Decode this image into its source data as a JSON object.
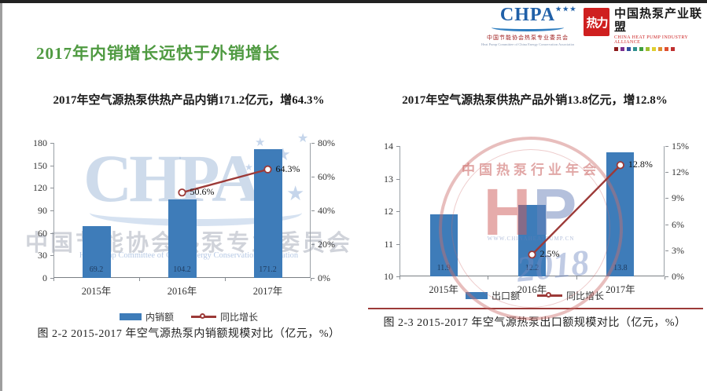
{
  "page": {
    "title": "2017年内销增长远快于外销增长",
    "title_color": "#4f9a41"
  },
  "header": {
    "chpa_logo": {
      "acronym": "CHPA",
      "stars": "★★★",
      "cn": "中国节能协会热泵专业委员会",
      "en": "Heat Pump Committee of China Energy Conservation Association"
    },
    "alliance_logo": {
      "mark": "热力",
      "cn": "中国热泵产业联盟",
      "en": "CHINA HEAT PUMP INDUSTRY ALLIANCE"
    }
  },
  "panels": {
    "left": {
      "subtitle": "2017年空气源热泵供热产品内销171.2亿元，增64.3%"
    },
    "right": {
      "subtitle": "2017年空气源热泵供热产品外销13.8亿元，增12.8%"
    }
  },
  "watermarks": {
    "chpa": {
      "acronym": "CHPA",
      "cn": "中国节能协会热泵专业委员会",
      "en": "Heat Pump Committee of China Energy Conservation Association"
    },
    "seal": {
      "arc_text": "中国热泵行业年会",
      "h": "H",
      "p": "P",
      "year": "2018",
      "tiny": "WWW.CHINAHEATPUMP.CN"
    }
  },
  "chart_data": [
    {
      "id": "domestic",
      "type": "bar+line",
      "caption": "图 2-2 2015-2017 年空气源热泵内销额规模对比（亿元，%）",
      "categories": [
        "2015年",
        "2016年",
        "2017年"
      ],
      "series": [
        {
          "name": "内销额",
          "type": "bar",
          "axis": "left",
          "color": "#3e7cb9",
          "values": [
            69.2,
            104.2,
            171.2
          ],
          "labels": [
            "69.2",
            "104.2",
            "171.2"
          ]
        },
        {
          "name": "同比增长",
          "type": "line",
          "axis": "right",
          "color": "#9c3a38",
          "values": [
            null,
            50.6,
            64.3
          ],
          "labels": [
            "",
            "50.6%",
            "64.3%"
          ]
        }
      ],
      "left_axis": {
        "min": 0,
        "max": 180,
        "step": 30,
        "suffix": ""
      },
      "right_axis": {
        "min": 0,
        "max": 80,
        "step": 20,
        "suffix": "%"
      },
      "grid": false,
      "legend_position": "bottom"
    },
    {
      "id": "export",
      "type": "bar+line",
      "caption": "图 2-3 2015-2017 年空气源热泵出口额规模对比（亿元，%）",
      "categories": [
        "2015年",
        "2016年",
        "2017年"
      ],
      "series": [
        {
          "name": "出口额",
          "type": "bar",
          "axis": "left",
          "color": "#3e7cb9",
          "values": [
            11.9,
            12.2,
            13.8
          ],
          "labels": [
            "11.9",
            "12.2",
            "13.8"
          ]
        },
        {
          "name": "同比增长",
          "type": "line",
          "axis": "right",
          "color": "#9c3a38",
          "values": [
            null,
            2.5,
            12.8
          ],
          "labels": [
            "",
            "2.5%",
            "12.8%"
          ]
        }
      ],
      "left_axis": {
        "min": 10,
        "max": 14,
        "step": 1,
        "suffix": ""
      },
      "right_axis": {
        "min": 0,
        "max": 15,
        "step": 3,
        "suffix": "%"
      },
      "grid": false,
      "legend_position": "bottom"
    }
  ]
}
